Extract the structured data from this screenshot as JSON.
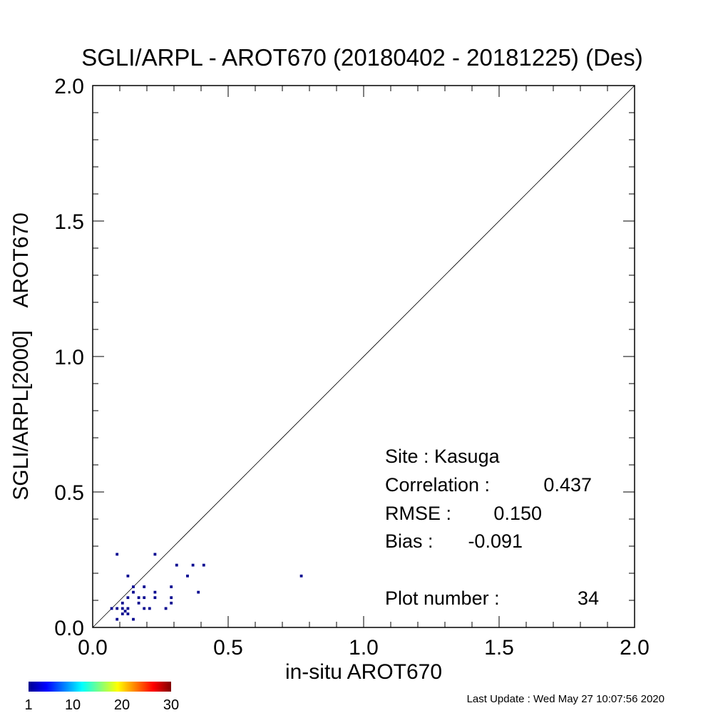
{
  "chart_data": {
    "type": "heatmap",
    "title": "SGLI/ARPL - AROT670 (20180402 - 20181225) (Des)",
    "xlabel": "in-situ AROT670",
    "ylabel": "SGLI/ARPL[2000]    AROT670",
    "xlim": [
      0.0,
      2.0
    ],
    "ylim": [
      0.0,
      2.0
    ],
    "x_ticks": [
      "0.0",
      "0.5",
      "1.0",
      "1.5",
      "2.0"
    ],
    "y_ticks": [
      "0.0",
      "0.5",
      "1.0",
      "1.5",
      "2.0"
    ],
    "reference_line": "1:1",
    "grid": false,
    "cell_size": 0.02,
    "points": [
      {
        "x": 0.09,
        "y": 0.27,
        "count": 1
      },
      {
        "x": 0.23,
        "y": 0.27,
        "count": 1
      },
      {
        "x": 0.31,
        "y": 0.23,
        "count": 1
      },
      {
        "x": 0.37,
        "y": 0.23,
        "count": 1
      },
      {
        "x": 0.41,
        "y": 0.23,
        "count": 1
      },
      {
        "x": 0.13,
        "y": 0.19,
        "count": 1
      },
      {
        "x": 0.35,
        "y": 0.19,
        "count": 1
      },
      {
        "x": 0.77,
        "y": 0.19,
        "count": 1
      },
      {
        "x": 0.15,
        "y": 0.15,
        "count": 1
      },
      {
        "x": 0.19,
        "y": 0.15,
        "count": 1
      },
      {
        "x": 0.29,
        "y": 0.15,
        "count": 1
      },
      {
        "x": 0.15,
        "y": 0.13,
        "count": 1
      },
      {
        "x": 0.23,
        "y": 0.13,
        "count": 1
      },
      {
        "x": 0.39,
        "y": 0.13,
        "count": 1
      },
      {
        "x": 0.13,
        "y": 0.11,
        "count": 1
      },
      {
        "x": 0.17,
        "y": 0.11,
        "count": 1
      },
      {
        "x": 0.19,
        "y": 0.11,
        "count": 1
      },
      {
        "x": 0.23,
        "y": 0.11,
        "count": 1
      },
      {
        "x": 0.29,
        "y": 0.11,
        "count": 1
      },
      {
        "x": 0.11,
        "y": 0.09,
        "count": 1
      },
      {
        "x": 0.17,
        "y": 0.09,
        "count": 1
      },
      {
        "x": 0.29,
        "y": 0.09,
        "count": 1
      },
      {
        "x": 0.07,
        "y": 0.07,
        "count": 1
      },
      {
        "x": 0.09,
        "y": 0.07,
        "count": 1
      },
      {
        "x": 0.11,
        "y": 0.07,
        "count": 1
      },
      {
        "x": 0.13,
        "y": 0.07,
        "count": 1
      },
      {
        "x": 0.19,
        "y": 0.07,
        "count": 1
      },
      {
        "x": 0.21,
        "y": 0.07,
        "count": 1
      },
      {
        "x": 0.27,
        "y": 0.07,
        "count": 1
      },
      {
        "x": 0.11,
        "y": 0.05,
        "count": 1
      },
      {
        "x": 0.13,
        "y": 0.05,
        "count": 1
      },
      {
        "x": 0.09,
        "y": 0.03,
        "count": 1
      },
      {
        "x": 0.15,
        "y": 0.03,
        "count": 1
      },
      {
        "x": 0.12,
        "y": 0.06,
        "count": 1
      }
    ],
    "colorbar": {
      "min": 1,
      "max": 30,
      "tick_labels": [
        "1",
        "10",
        "20",
        "30"
      ],
      "tick_values": [
        1,
        10,
        20,
        30
      ],
      "colormap": "jet"
    },
    "point_color": "#00008F"
  },
  "stats": {
    "site_label": "Site : Kasuga",
    "correlation_label": "Correlation :",
    "correlation_value": "0.437",
    "rmse_label": "RMSE :",
    "rmse_value": "0.150",
    "bias_label": "Bias :",
    "bias_value": "-0.091",
    "plot_number_label": "Plot number :",
    "plot_number_value": "34"
  },
  "footer": {
    "last_update": "Last Update : Wed May 27 10:07:56 2020"
  }
}
